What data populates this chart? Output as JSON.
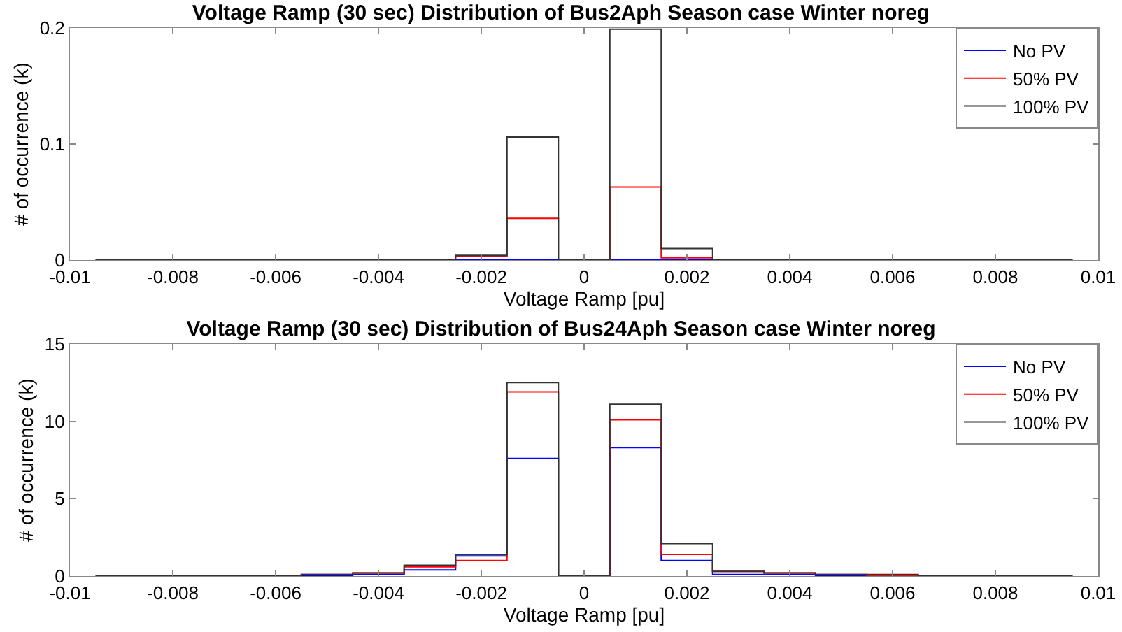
{
  "chart_data": [
    {
      "type": "histogram",
      "title": "Voltage Ramp (30 sec) Distribution of Bus2Aph Season case Winter noreg",
      "xlabel": "Voltage Ramp [pu]",
      "ylabel": "# of occurrence (k)",
      "bins": [
        -0.0095,
        -0.0085,
        -0.0075,
        -0.0065,
        -0.0055,
        -0.0045,
        -0.0035,
        -0.0025,
        -0.0015,
        -0.0005,
        0.0005,
        0.0015,
        0.0025,
        0.0035,
        0.0045,
        0.0055,
        0.0065,
        0.0075,
        0.0085,
        0.0095
      ],
      "series": [
        {
          "name": "No PV",
          "color": "#0000ff",
          "values": [
            0,
            0,
            0,
            0,
            0,
            0,
            0,
            0,
            0,
            0,
            0,
            0,
            0,
            0,
            0,
            0,
            0,
            0,
            0
          ]
        },
        {
          "name": "50% PV",
          "color": "#ff0000",
          "values": [
            0,
            0,
            0,
            0,
            0,
            0,
            0,
            0.003,
            0.036,
            0,
            0.063,
            0.002,
            0,
            0,
            0,
            0,
            0,
            0,
            0
          ]
        },
        {
          "name": "100% PV",
          "color": "#333333",
          "values": [
            0,
            0,
            0,
            0,
            0,
            0,
            0,
            0.004,
            0.106,
            0,
            0.199,
            0.01,
            0,
            0,
            0,
            0,
            0,
            0,
            0
          ]
        }
      ],
      "xlim": [
        -0.01,
        0.01
      ],
      "xticks": [
        -0.01,
        -0.008,
        -0.006,
        -0.004,
        -0.002,
        0,
        0.002,
        0.004,
        0.006,
        0.008,
        0.01
      ],
      "ylim": [
        0,
        0.2
      ],
      "yticks": [
        0,
        0.1,
        0.2
      ],
      "legend": "top right"
    },
    {
      "type": "histogram",
      "title": "Voltage Ramp (30 sec) Distribution of Bus24Aph Season case Winter noreg",
      "xlabel": "Voltage Ramp [pu]",
      "ylabel": "# of occurrence (k)",
      "bins": [
        -0.0095,
        -0.0085,
        -0.0075,
        -0.0065,
        -0.0055,
        -0.0045,
        -0.0035,
        -0.0025,
        -0.0015,
        -0.0005,
        0.0005,
        0.0015,
        0.0025,
        0.0035,
        0.0045,
        0.0055,
        0.0065,
        0.0075,
        0.0085,
        0.0095
      ],
      "series": [
        {
          "name": "No PV",
          "color": "#0000ff",
          "values": [
            0,
            0,
            0,
            0,
            0,
            0.1,
            0.4,
            1.3,
            7.6,
            0,
            8.3,
            1.0,
            0.1,
            0.1,
            0,
            0,
            0,
            0,
            0
          ]
        },
        {
          "name": "50% PV",
          "color": "#ff0000",
          "values": [
            0,
            0,
            0,
            0,
            0.1,
            0.2,
            0.6,
            1.0,
            11.9,
            0,
            10.1,
            1.4,
            0.3,
            0.2,
            0.1,
            0,
            0,
            0,
            0
          ]
        },
        {
          "name": "100% PV",
          "color": "#333333",
          "values": [
            0,
            0,
            0,
            0,
            0.1,
            0.2,
            0.7,
            1.4,
            12.5,
            0,
            11.1,
            2.1,
            0.3,
            0.2,
            0.1,
            0.1,
            0,
            0,
            0
          ]
        }
      ],
      "xlim": [
        -0.01,
        0.01
      ],
      "xticks": [
        -0.01,
        -0.008,
        -0.006,
        -0.004,
        -0.002,
        0,
        0.002,
        0.004,
        0.006,
        0.008,
        0.01
      ],
      "ylim": [
        0,
        15
      ],
      "yticks": [
        0,
        5,
        10,
        15
      ],
      "legend": "top right"
    }
  ]
}
